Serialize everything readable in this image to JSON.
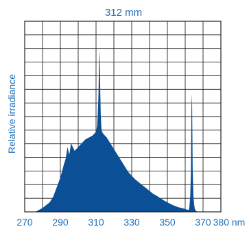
{
  "chart_data": {
    "type": "area",
    "title": "312 mm",
    "xlabel": "",
    "ylabel": "Relative irradiance",
    "x_tick_labels": [
      "270",
      "290",
      "310",
      "330",
      "350",
      "370",
      "380 nm"
    ],
    "x_tick_values": [
      270,
      290,
      310,
      330,
      350,
      370,
      380
    ],
    "xlim": [
      270,
      380
    ],
    "ylim": [
      0,
      1
    ],
    "grid": true,
    "grid_rows": 14,
    "colors": {
      "fill": "#0b4f96",
      "text": "#1d6fb8",
      "grid": "#222222"
    },
    "series": [
      {
        "x": [
          276,
          280,
          284,
          286,
          288,
          290,
          292,
          293,
          294,
          295,
          296,
          297,
          298,
          300,
          302,
          304,
          306,
          308,
          309,
          310,
          310.6,
          311,
          311.4,
          311.7,
          312,
          312.3,
          312.6,
          313,
          313.4,
          314,
          316,
          318,
          320,
          322,
          324,
          326,
          328,
          330,
          332,
          334,
          336,
          338,
          340,
          342,
          344,
          346,
          348,
          350,
          352,
          354,
          356,
          358,
          360,
          361,
          362,
          362.4,
          362.8,
          363.2,
          363.5,
          363.8,
          364.2,
          364.6,
          365,
          365.4,
          366,
          367
        ],
        "y": [
          0,
          0.02,
          0.05,
          0.08,
          0.13,
          0.18,
          0.25,
          0.28,
          0.34,
          0.3,
          0.36,
          0.34,
          0.32,
          0.34,
          0.36,
          0.38,
          0.39,
          0.4,
          0.41,
          0.42,
          0.45,
          0.52,
          0.62,
          0.78,
          0.85,
          0.66,
          0.52,
          0.44,
          0.42,
          0.41,
          0.39,
          0.36,
          0.33,
          0.3,
          0.27,
          0.24,
          0.21,
          0.19,
          0.17,
          0.155,
          0.14,
          0.125,
          0.11,
          0.095,
          0.085,
          0.072,
          0.06,
          0.05,
          0.04,
          0.032,
          0.025,
          0.02,
          0.015,
          0.012,
          0.01,
          0.03,
          0.08,
          0.2,
          0.55,
          0.62,
          0.22,
          0.08,
          0.04,
          0.015,
          0.005,
          0
        ]
      }
    ]
  }
}
